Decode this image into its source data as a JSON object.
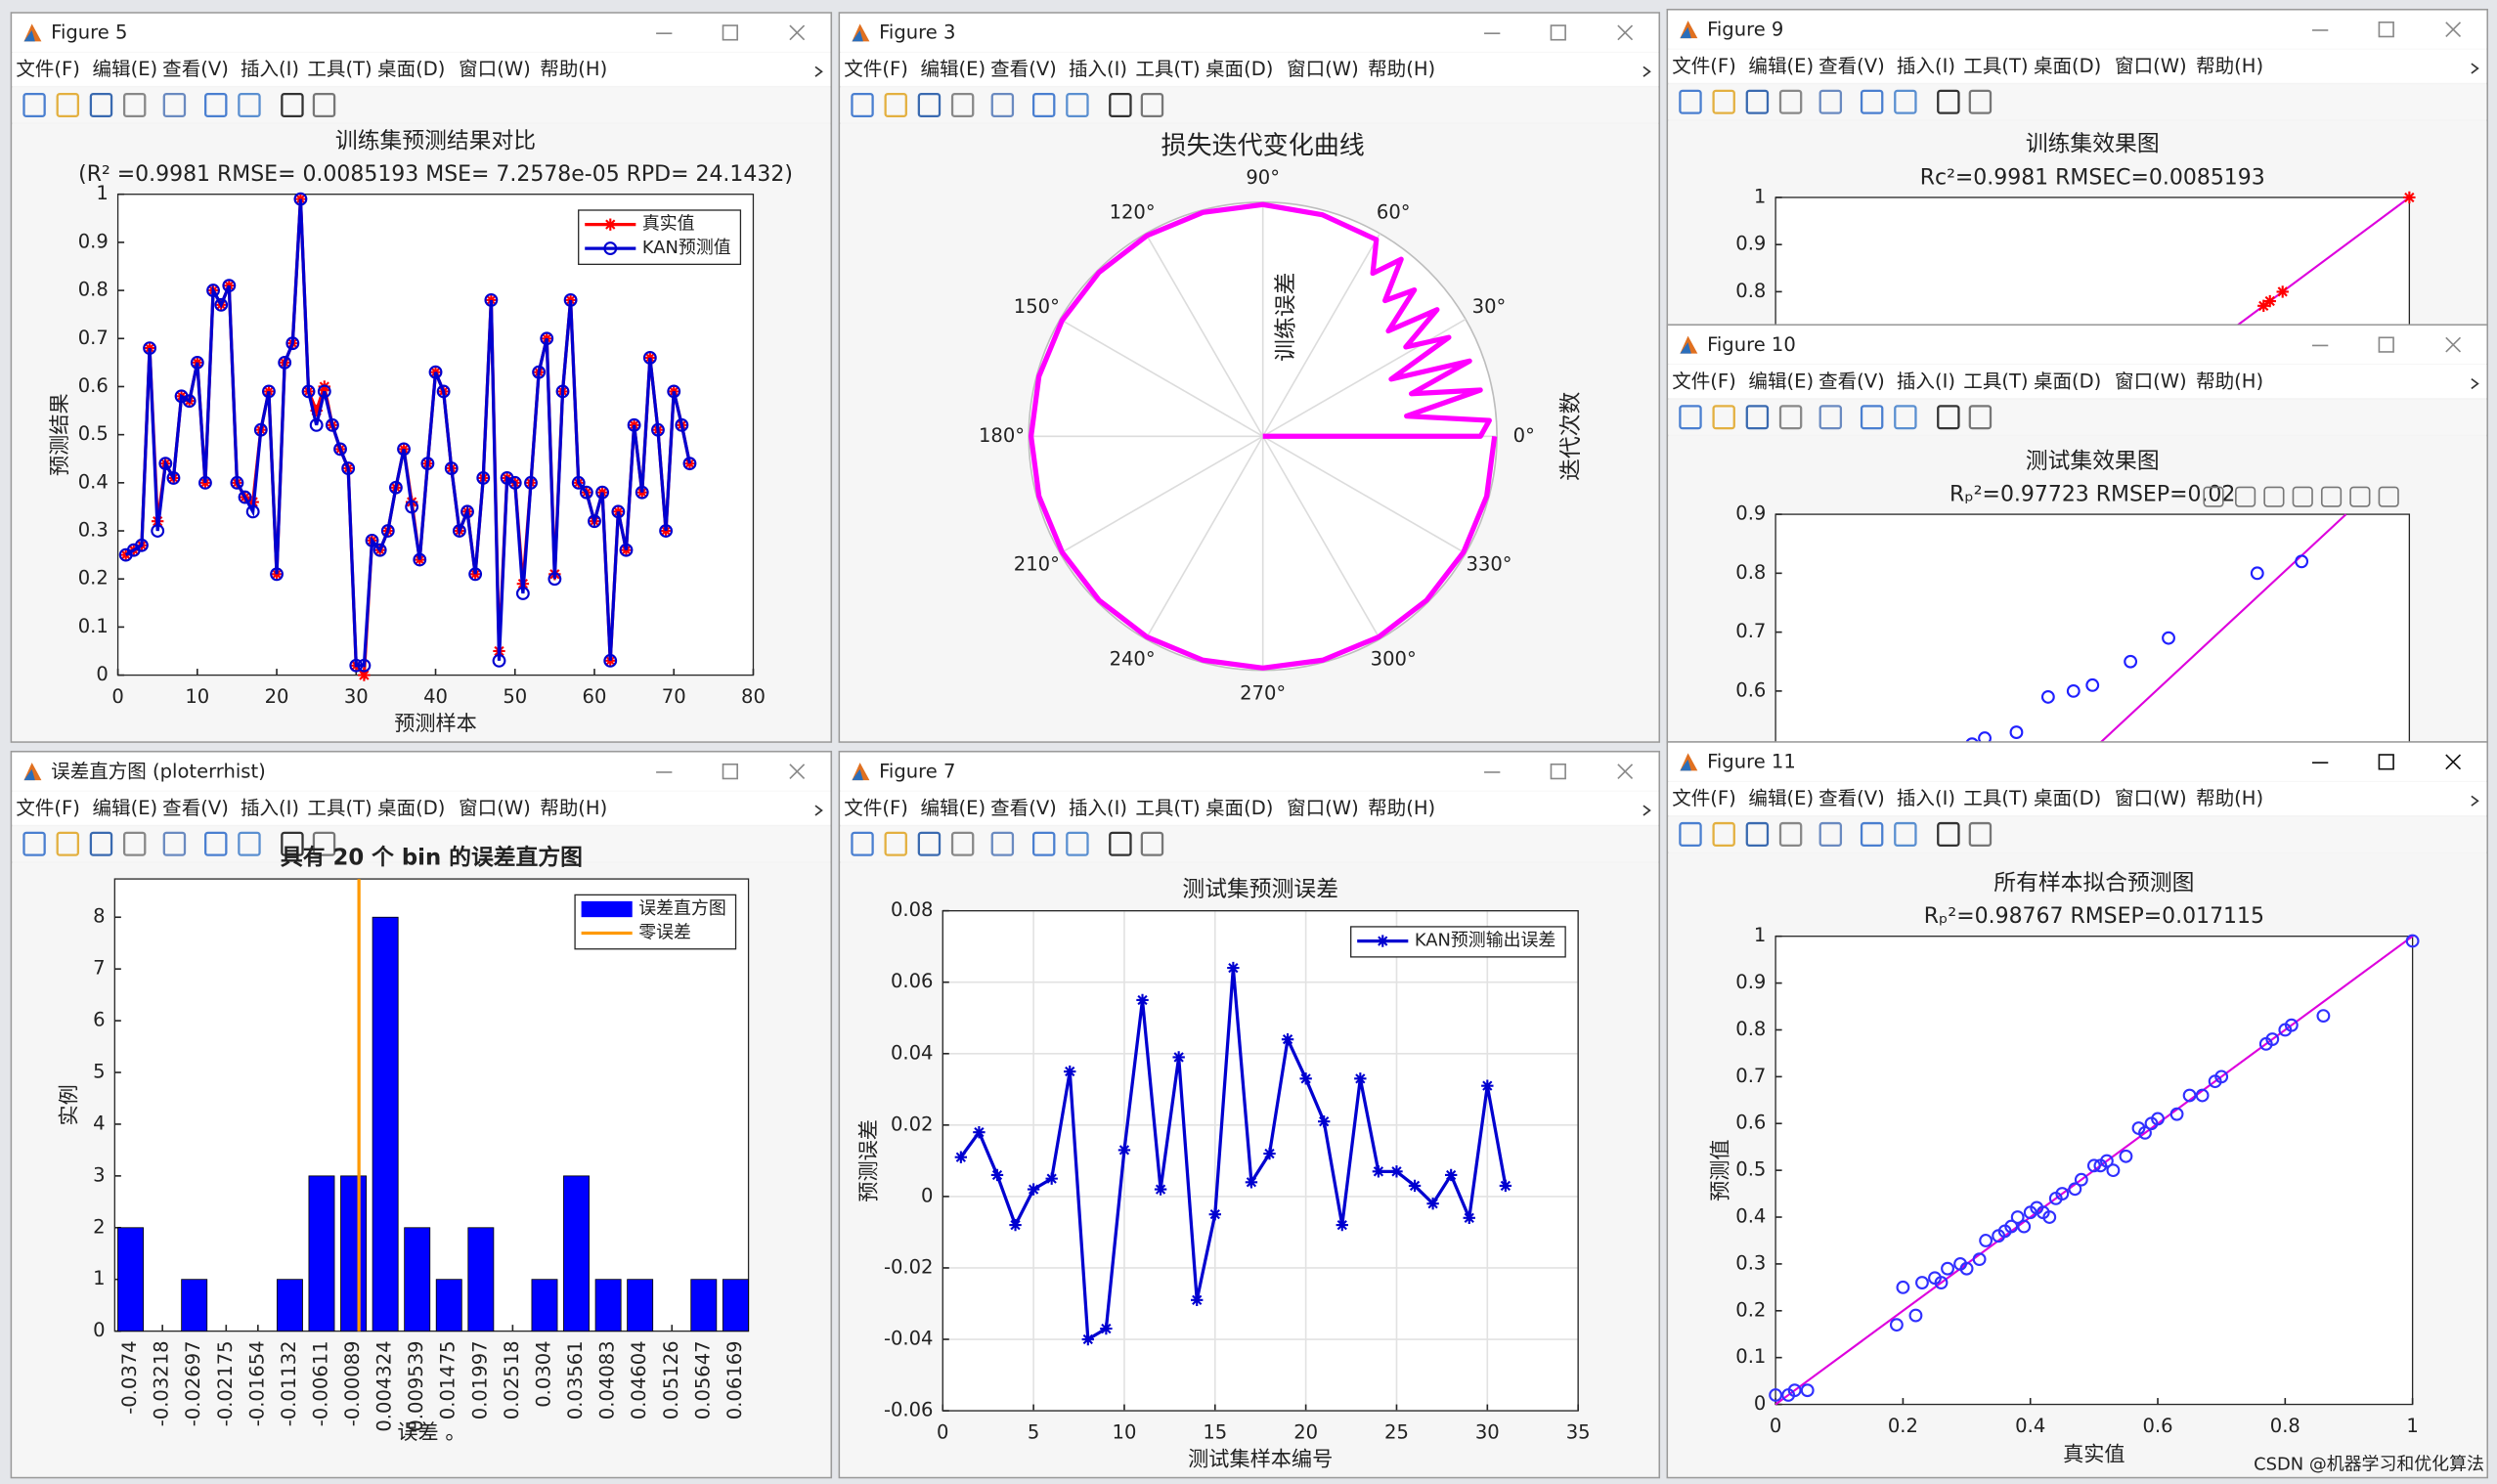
{
  "windows": [
    {
      "title": "Figure 5",
      "menu": [
        "文件(F)",
        "编辑(E)",
        "查看(V)",
        "插入(I)",
        "工具(T)",
        "桌面(D)",
        "窗口(W)",
        "帮助(H)"
      ],
      "chart": {
        "type": "line",
        "title": "训练集预测结果对比",
        "subtitle": "(R² =0.9981 RMSE= 0.0085193 MSE= 7.2578e-05 RPD= 24.1432)",
        "xlabel": "预测样本",
        "ylabel": "预测结果",
        "xlim": [
          0,
          80
        ],
        "xticks": [
          0,
          10,
          20,
          30,
          40,
          50,
          60,
          70,
          80
        ],
        "ylim": [
          0,
          1
        ],
        "yticks": [
          0,
          0.1,
          0.2,
          0.3,
          0.4,
          0.5,
          0.6,
          0.7,
          0.8,
          0.9,
          1
        ],
        "grid": false,
        "legend": "northeast",
        "x": [
          1,
          2,
          3,
          4,
          5,
          6,
          7,
          8,
          9,
          10,
          11,
          12,
          13,
          14,
          15,
          16,
          17,
          18,
          19,
          20,
          21,
          22,
          23,
          24,
          25,
          26,
          27,
          28,
          29,
          30,
          31,
          32,
          33,
          34,
          35,
          36,
          37,
          38,
          39,
          40,
          41,
          42,
          43,
          44,
          45,
          46,
          47,
          48,
          49,
          50,
          51,
          52,
          53,
          54,
          55,
          56,
          57,
          58,
          59,
          60,
          61,
          62,
          63,
          64,
          65,
          66,
          67,
          68,
          69,
          70,
          71,
          72
        ],
        "series": [
          {
            "name": "真实值",
            "color": "#ff0000",
            "marker": "*",
            "values": [
              0.25,
              0.26,
              0.27,
              0.68,
              0.32,
              0.44,
              0.41,
              0.58,
              0.57,
              0.65,
              0.4,
              0.8,
              0.77,
              0.81,
              0.4,
              0.37,
              0.36,
              0.51,
              0.59,
              0.21,
              0.65,
              0.69,
              0.99,
              0.59,
              0.55,
              0.6,
              0.52,
              0.47,
              0.43,
              0.02,
              0.0,
              0.28,
              0.26,
              0.3,
              0.39,
              0.47,
              0.36,
              0.24,
              0.44,
              0.63,
              0.59,
              0.43,
              0.3,
              0.34,
              0.21,
              0.41,
              0.78,
              0.05,
              0.41,
              0.4,
              0.19,
              0.4,
              0.63,
              0.7,
              0.21,
              0.59,
              0.78,
              0.4,
              0.38,
              0.32,
              0.38,
              0.03,
              0.34,
              0.26,
              0.52,
              0.38,
              0.66,
              0.51,
              0.3,
              0.59,
              0.52,
              0.44
            ]
          },
          {
            "name": "KAN预测值",
            "color": "#0000d0",
            "marker": "o",
            "values": [
              0.25,
              0.26,
              0.27,
              0.68,
              0.3,
              0.44,
              0.41,
              0.58,
              0.57,
              0.65,
              0.4,
              0.8,
              0.77,
              0.81,
              0.4,
              0.37,
              0.34,
              0.51,
              0.59,
              0.21,
              0.65,
              0.69,
              0.99,
              0.59,
              0.52,
              0.59,
              0.52,
              0.47,
              0.43,
              0.02,
              0.02,
              0.28,
              0.26,
              0.3,
              0.39,
              0.47,
              0.35,
              0.24,
              0.44,
              0.63,
              0.59,
              0.43,
              0.3,
              0.34,
              0.21,
              0.41,
              0.78,
              0.03,
              0.41,
              0.4,
              0.17,
              0.4,
              0.63,
              0.7,
              0.2,
              0.59,
              0.78,
              0.4,
              0.38,
              0.32,
              0.38,
              0.03,
              0.34,
              0.26,
              0.52,
              0.38,
              0.66,
              0.51,
              0.3,
              0.59,
              0.52,
              0.44
            ]
          }
        ]
      }
    },
    {
      "title": "Figure 3",
      "menu": [
        "文件(F)",
        "编辑(E)",
        "查看(V)",
        "插入(I)",
        "工具(T)",
        "桌面(D)",
        "窗口(W)",
        "帮助(H)"
      ],
      "chart": {
        "type": "polar",
        "title": "损失迭代变化曲线",
        "rlabel": "训练误差",
        "ylabel": "迭代次数",
        "rlim": [
          0,
          1
        ],
        "color": "#ff00ff",
        "thetaticks": [
          {
            "value": 0,
            "label": "0°"
          },
          {
            "value": 30,
            "label": "30°"
          },
          {
            "value": 60,
            "label": "60°"
          },
          {
            "value": 90,
            "label": "90°"
          },
          {
            "value": 120,
            "label": "120°"
          },
          {
            "value": 150,
            "label": "150°"
          },
          {
            "value": 180,
            "label": "180°"
          },
          {
            "value": 210,
            "label": "210°"
          },
          {
            "value": 240,
            "label": "240°"
          },
          {
            "value": 270,
            "label": "270°"
          },
          {
            "value": 300,
            "label": "300°"
          },
          {
            "value": 330,
            "label": "330°"
          }
        ],
        "theta": [
          0,
          0,
          4,
          8,
          12,
          16,
          20,
          24,
          28,
          32,
          36,
          40,
          44,
          48,
          52,
          56,
          60,
          75,
          90,
          105,
          120,
          135,
          150,
          165,
          180,
          195,
          210,
          225,
          240,
          255,
          270,
          285,
          300,
          315,
          330,
          345,
          360
        ],
        "r": [
          0,
          0.93,
          0.97,
          0.62,
          0.95,
          0.66,
          0.94,
          0.6,
          0.9,
          0.72,
          0.92,
          0.7,
          0.9,
          0.78,
          0.96,
          0.84,
          0.97,
          0.98,
          0.99,
          0.99,
          0.99,
          0.99,
          0.99,
          0.99,
          0.99,
          0.99,
          0.99,
          0.99,
          0.99,
          0.99,
          0.99,
          0.99,
          0.99,
          0.99,
          0.99,
          0.99,
          0.99
        ]
      }
    },
    {
      "title": "误差直方图 (ploterrhist)",
      "menu": [
        "文件(F)",
        "编辑(E)",
        "查看(V)",
        "插入(I)",
        "工具(T)",
        "桌面(D)",
        "窗口(W)",
        "帮助(H)"
      ],
      "chart": {
        "type": "bar",
        "title": "具有 20 个 bin 的误差直方图",
        "xlabel": "误差 。",
        "ylabel": "实例",
        "xlim": [
          -0.04,
          0.0638
        ],
        "ylim": [
          0,
          8.74
        ],
        "yticks": [
          0,
          1,
          2,
          3,
          4,
          5,
          6,
          7,
          8
        ],
        "grid": false,
        "legend": "northeast",
        "x": [
          -0.0374,
          -0.03218,
          -0.02697,
          -0.02175,
          -0.01654,
          -0.01132,
          -0.00611,
          -0.00089,
          0.004324,
          0.009539,
          0.01475,
          0.01997,
          0.02518,
          0.0304,
          0.03561,
          0.04083,
          0.04604,
          0.05126,
          0.05647,
          0.06169
        ],
        "series": [
          {
            "name": "误差直方图",
            "color": "#0000ff",
            "values": [
              2,
              0,
              1,
              0,
              0,
              1,
              3,
              3,
              8,
              2,
              1,
              2,
              0,
              1,
              3,
              1,
              1,
              0,
              1,
              1
            ]
          }
        ],
        "reference_line": {
          "name": "零误差",
          "x": 0,
          "color": "#ff9900"
        }
      }
    },
    {
      "title": "Figure 7",
      "menu": [
        "文件(F)",
        "编辑(E)",
        "查看(V)",
        "插入(I)",
        "工具(T)",
        "桌面(D)",
        "窗口(W)",
        "帮助(H)"
      ],
      "chart": {
        "type": "line",
        "title": "测试集预测误差",
        "xlabel": "测试集样本编号",
        "ylabel": "预测误差",
        "xlim": [
          0,
          35
        ],
        "xticks": [
          0,
          5,
          10,
          15,
          20,
          25,
          30,
          35
        ],
        "ylim": [
          -0.06,
          0.08
        ],
        "yticks": [
          -0.06,
          -0.04,
          -0.02,
          0,
          0.02,
          0.04,
          0.06,
          0.08
        ],
        "grid": true,
        "legend": "northeast",
        "x": [
          1,
          2,
          3,
          4,
          5,
          6,
          7,
          8,
          9,
          10,
          11,
          12,
          13,
          14,
          15,
          16,
          17,
          18,
          19,
          20,
          21,
          22,
          23,
          24,
          25,
          26,
          27,
          28,
          29,
          30,
          31
        ],
        "series": [
          {
            "name": "KAN预测输出误差",
            "color": "#0000d0",
            "marker": "*",
            "values": [
              0.011,
              0.018,
              0.006,
              -0.008,
              0.002,
              0.005,
              0.035,
              -0.04,
              -0.037,
              0.013,
              0.055,
              0.002,
              0.039,
              -0.029,
              -0.005,
              0.064,
              0.004,
              0.012,
              0.044,
              0.033,
              0.021,
              -0.008,
              0.033,
              0.007,
              0.007,
              0.003,
              -0.002,
              0.006,
              -0.006,
              0.031,
              0.003
            ]
          }
        ]
      }
    },
    {
      "title": "Figure 9",
      "menu": [
        "文件(F)",
        "编辑(E)",
        "查看(V)",
        "插入(I)",
        "工具(T)",
        "桌面(D)",
        "窗口(W)",
        "帮助(H)"
      ],
      "chart": {
        "type": "scatter",
        "title": "训练集效果图",
        "subtitle": "Rc²=0.9981  RMSEC=0.0085193",
        "xlim": [
          0,
          1
        ],
        "ylim": [
          0,
          1
        ],
        "yticks": [
          0.8,
          0.9,
          1
        ],
        "x": [
          0.77,
          0.78,
          0.8,
          1
        ],
        "y": [
          0.77,
          0.78,
          0.8,
          1
        ],
        "color": "#ff0000",
        "marker": "*",
        "fit_line": {
          "x": [
            0,
            1
          ],
          "y": [
            0,
            1
          ],
          "color": "#dd00dd"
        }
      }
    },
    {
      "title": "Figure 10",
      "menu": [
        "文件(F)",
        "编辑(E)",
        "查看(V)",
        "插入(I)",
        "工具(T)",
        "桌面(D)",
        "窗口(W)",
        "帮助(H)"
      ],
      "chart": {
        "type": "scatter",
        "title": "测试集效果图",
        "subtitle": "Rₚ²=0.97723  RMSEP=0.02",
        "xlim": [
          0,
          1
        ],
        "ylim": [
          0,
          0.9
        ],
        "yticks": [
          0.6,
          0.7,
          0.8,
          0.9
        ],
        "x": [
          0.31,
          0.33,
          0.38,
          0.43,
          0.47,
          0.5,
          0.56,
          0.62,
          0.76,
          0.83
        ],
        "y": [
          0.51,
          0.52,
          0.53,
          0.59,
          0.6,
          0.61,
          0.65,
          0.69,
          0.8,
          0.82
        ],
        "color": "#2020ff",
        "marker": "o",
        "fit_line": {
          "x": [
            0,
            0.9
          ],
          "y": [
            0,
            0.9
          ],
          "color": "#dd00dd"
        }
      }
    },
    {
      "title": "Figure 11",
      "menu": [
        "文件(F)",
        "编辑(E)",
        "查看(V)",
        "插入(I)",
        "工具(T)",
        "桌面(D)",
        "窗口(W)",
        "帮助(H)"
      ],
      "chart": {
        "type": "scatter",
        "title": "所有样本拟合预测图",
        "subtitle": "Rₚ²=0.98767  RMSEP=0.017115",
        "xlabel": "真实值",
        "ylabel": "预测值",
        "xlim": [
          0,
          1
        ],
        "xticks": [
          0,
          0.2,
          0.4,
          0.6,
          0.8,
          1
        ],
        "ylim": [
          0,
          1
        ],
        "yticks": [
          0,
          0.1,
          0.2,
          0.3,
          0.4,
          0.5,
          0.6,
          0.7,
          0.8,
          0.9,
          1
        ],
        "x": [
          0,
          0.02,
          0.03,
          0.05,
          0.19,
          0.2,
          0.22,
          0.23,
          0.25,
          0.26,
          0.27,
          0.29,
          0.3,
          0.32,
          0.33,
          0.35,
          0.36,
          0.37,
          0.38,
          0.39,
          0.4,
          0.41,
          0.42,
          0.43,
          0.44,
          0.45,
          0.47,
          0.48,
          0.5,
          0.51,
          0.52,
          0.53,
          0.55,
          0.57,
          0.58,
          0.59,
          0.6,
          0.63,
          0.65,
          0.67,
          0.69,
          0.7,
          0.77,
          0.78,
          0.8,
          0.81,
          0.86,
          1.0
        ],
        "y": [
          0.02,
          0.02,
          0.03,
          0.03,
          0.17,
          0.25,
          0.19,
          0.26,
          0.27,
          0.26,
          0.29,
          0.3,
          0.29,
          0.31,
          0.35,
          0.36,
          0.37,
          0.38,
          0.4,
          0.38,
          0.41,
          0.42,
          0.41,
          0.4,
          0.44,
          0.45,
          0.46,
          0.48,
          0.51,
          0.51,
          0.52,
          0.5,
          0.53,
          0.59,
          0.58,
          0.6,
          0.61,
          0.62,
          0.66,
          0.66,
          0.69,
          0.7,
          0.77,
          0.78,
          0.8,
          0.81,
          0.83,
          0.99
        ],
        "color": "#3030ff",
        "marker": "o",
        "fit_line": {
          "x": [
            0,
            1
          ],
          "y": [
            0,
            1
          ],
          "color": "#dd00dd"
        }
      }
    }
  ],
  "watermark": "CSDN @机器学习和优化算法"
}
